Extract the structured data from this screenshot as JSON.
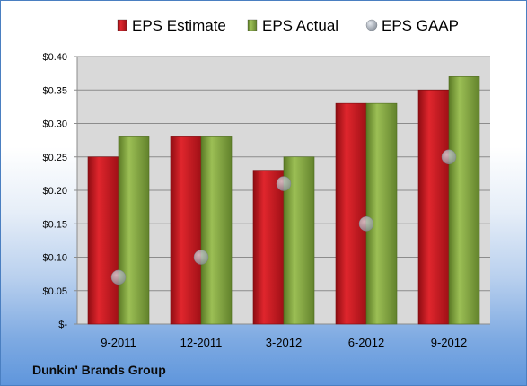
{
  "company_name": "Dunkin' Brands Group",
  "colors": {
    "estimate": "#c8161d",
    "actual": "#7a9d3a",
    "gaap": "#a9b1bb",
    "plot_background": "#d9d9d9"
  },
  "chart_data": {
    "type": "bar",
    "title": "",
    "xlabel": "",
    "ylabel": "",
    "categories": [
      "9-2011",
      "12-2011",
      "3-2012",
      "6-2012",
      "9-2012"
    ],
    "series": [
      {
        "name": "EPS Estimate",
        "kind": "bar",
        "values": [
          0.25,
          0.28,
          0.23,
          0.33,
          0.35
        ]
      },
      {
        "name": "EPS Actual",
        "kind": "bar",
        "values": [
          0.28,
          0.28,
          0.25,
          0.33,
          0.37
        ]
      },
      {
        "name": "EPS GAAP",
        "kind": "marker",
        "values": [
          0.07,
          0.1,
          0.21,
          0.15,
          0.25
        ]
      }
    ],
    "ylim": [
      0,
      0.4
    ],
    "yticks": [
      0,
      0.05,
      0.1,
      0.15,
      0.2,
      0.25,
      0.3,
      0.35,
      0.4
    ],
    "ytick_labels": [
      "$-",
      "$0.05",
      "$0.10",
      "$0.15",
      "$0.20",
      "$0.25",
      "$0.30",
      "$0.35",
      "$0.40"
    ],
    "grid": true,
    "legend_position": "top"
  }
}
